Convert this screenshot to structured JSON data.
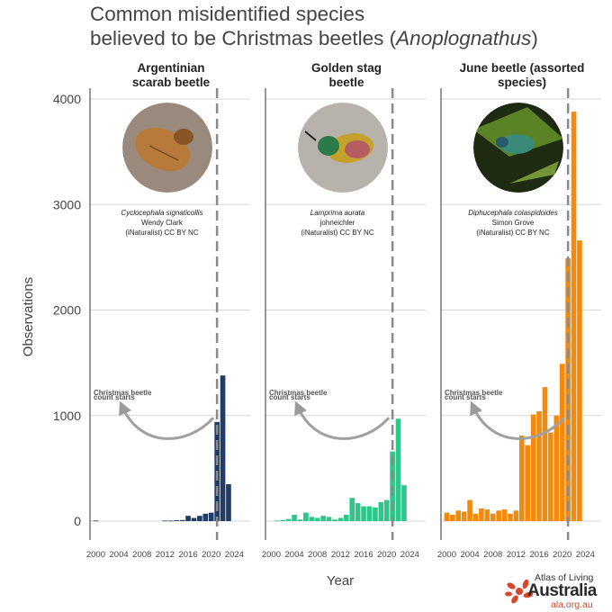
{
  "title": {
    "line1": "Common misidentified species",
    "line2_prefix": "believed to be Christmas beetles (",
    "line2_sci": "Anoplognathus",
    "line2_suffix": ")"
  },
  "logo": {
    "line1": "Atlas of Living",
    "line2": "Australia",
    "line3": "ala.org.au",
    "color": "#d9472b"
  },
  "chart_data": {
    "type": "bar",
    "xlabel": "Year",
    "ylabel": "Observations",
    "ylim": [
      0,
      4200
    ],
    "yticks": [
      0,
      1000,
      2000,
      3000,
      4000
    ],
    "xlim": [
      1999,
      2025.5
    ],
    "xticks": [
      2000,
      2004,
      2008,
      2012,
      2016,
      2020,
      2024
    ],
    "grid": "horizontal",
    "reference_line": {
      "x": 2021,
      "label": "Christmas beetle count starts"
    },
    "facets": [
      {
        "title_lines": [
          "Argentinian",
          "scarab beetle"
        ],
        "color": "#1f3d66",
        "photo_icon": "brown-scarab-beetle-photo",
        "credit": {
          "species": "Cyclocephala signaticollis",
          "author": "Wendy Clark",
          "license": "(iNaturalist) CC BY NC"
        },
        "years": [
          2000,
          2012,
          2013,
          2014,
          2015,
          2016,
          2017,
          2018,
          2019,
          2020,
          2021,
          2022,
          2023
        ],
        "values": [
          5,
          5,
          5,
          8,
          10,
          50,
          30,
          50,
          70,
          80,
          940,
          1380,
          350
        ]
      },
      {
        "title_lines": [
          "Golden stag",
          "beetle"
        ],
        "color": "#2ec68a",
        "photo_icon": "golden-stag-beetle-photo",
        "credit": {
          "species": "Lamprima aurata",
          "author": "johneichler",
          "license": "(iNaturalist) CC BY NC"
        },
        "years": [
          2001,
          2002,
          2003,
          2004,
          2005,
          2006,
          2007,
          2008,
          2009,
          2010,
          2011,
          2012,
          2013,
          2014,
          2015,
          2016,
          2017,
          2018,
          2019,
          2020,
          2021,
          2022,
          2023
        ],
        "values": [
          5,
          10,
          20,
          60,
          15,
          80,
          40,
          30,
          50,
          40,
          15,
          30,
          60,
          220,
          170,
          140,
          140,
          130,
          180,
          200,
          660,
          970,
          340
        ]
      },
      {
        "title_lines": [
          "June beetle (assorted",
          "species)"
        ],
        "color": "#f28a0e",
        "photo_icon": "june-beetle-photo",
        "credit": {
          "species": "Diphucephala colaspidoides",
          "author": "Simon Grove",
          "license": "(iNaturalist) CC BY NC"
        },
        "years": [
          2000,
          2001,
          2002,
          2003,
          2004,
          2005,
          2006,
          2007,
          2008,
          2009,
          2010,
          2011,
          2012,
          2013,
          2014,
          2015,
          2016,
          2017,
          2018,
          2019,
          2020,
          2021,
          2022,
          2023
        ],
        "values": [
          80,
          60,
          100,
          90,
          200,
          70,
          120,
          110,
          70,
          100,
          110,
          70,
          100,
          810,
          720,
          1010,
          1040,
          1270,
          840,
          1000,
          1490,
          2490,
          3880,
          2660
        ]
      }
    ]
  }
}
